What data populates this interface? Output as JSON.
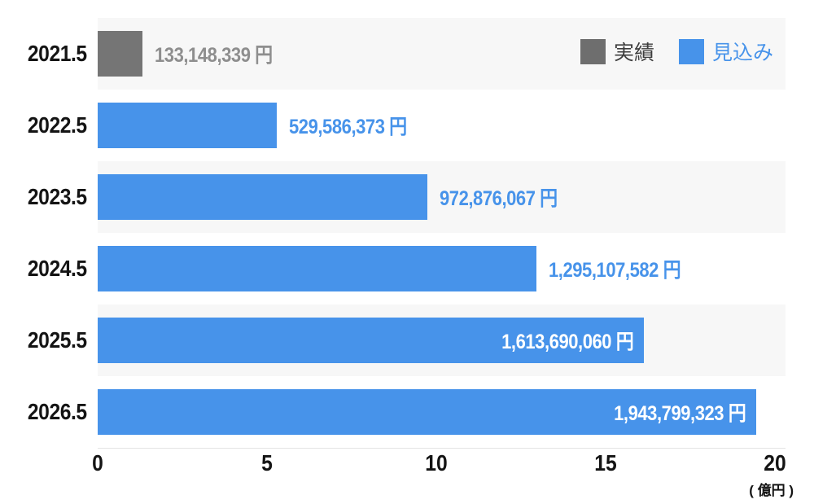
{
  "chart_data": {
    "type": "bar",
    "orientation": "horizontal",
    "title": "",
    "categories": [
      "2021.5",
      "2022.5",
      "2023.5",
      "2024.5",
      "2025.5",
      "2026.5"
    ],
    "items": [
      {
        "category": "2021.5",
        "series": "実績",
        "value_yen": 133148339,
        "label": "133,148,339 円",
        "label_position": "outside"
      },
      {
        "category": "2022.5",
        "series": "見込み",
        "value_yen": 529586373,
        "label": "529,586,373 円",
        "label_position": "outside"
      },
      {
        "category": "2023.5",
        "series": "見込み",
        "value_yen": 972876067,
        "label": "972,876,067 円",
        "label_position": "outside"
      },
      {
        "category": "2024.5",
        "series": "見込み",
        "value_yen": 1295107582,
        "label": "1,295,107,582 円",
        "label_position": "outside"
      },
      {
        "category": "2025.5",
        "series": "見込み",
        "value_yen": 1613690060,
        "label": "1,613,690,060 円",
        "label_position": "inside"
      },
      {
        "category": "2026.5",
        "series": "見込み",
        "value_yen": 1943799323,
        "label": "1,943,799,323 円",
        "label_position": "inside"
      }
    ],
    "x_axis": {
      "ticks": [
        "0",
        "5",
        "10",
        "15",
        "20"
      ],
      "tick_values": [
        0,
        5,
        10,
        15,
        20
      ],
      "max_oku": 20,
      "unit_label": "( 億円 )",
      "unit": "億円"
    },
    "legend": [
      {
        "label": "実績",
        "color": "#6e6e6e",
        "text_color": "#3d3d3d"
      },
      {
        "label": "見込み",
        "color": "#4793ea",
        "text_color": "#4793ea"
      }
    ],
    "legend_position": "top-right",
    "grid": false,
    "colors": {
      "actual_bar": "#757575",
      "forecast_bar": "#4793ea",
      "stripe": "#f7f7f7",
      "label_gray": "#8e8e8e",
      "label_blue": "#4793ea",
      "label_inside": "#ffffff",
      "axis_text": "#141414"
    }
  }
}
